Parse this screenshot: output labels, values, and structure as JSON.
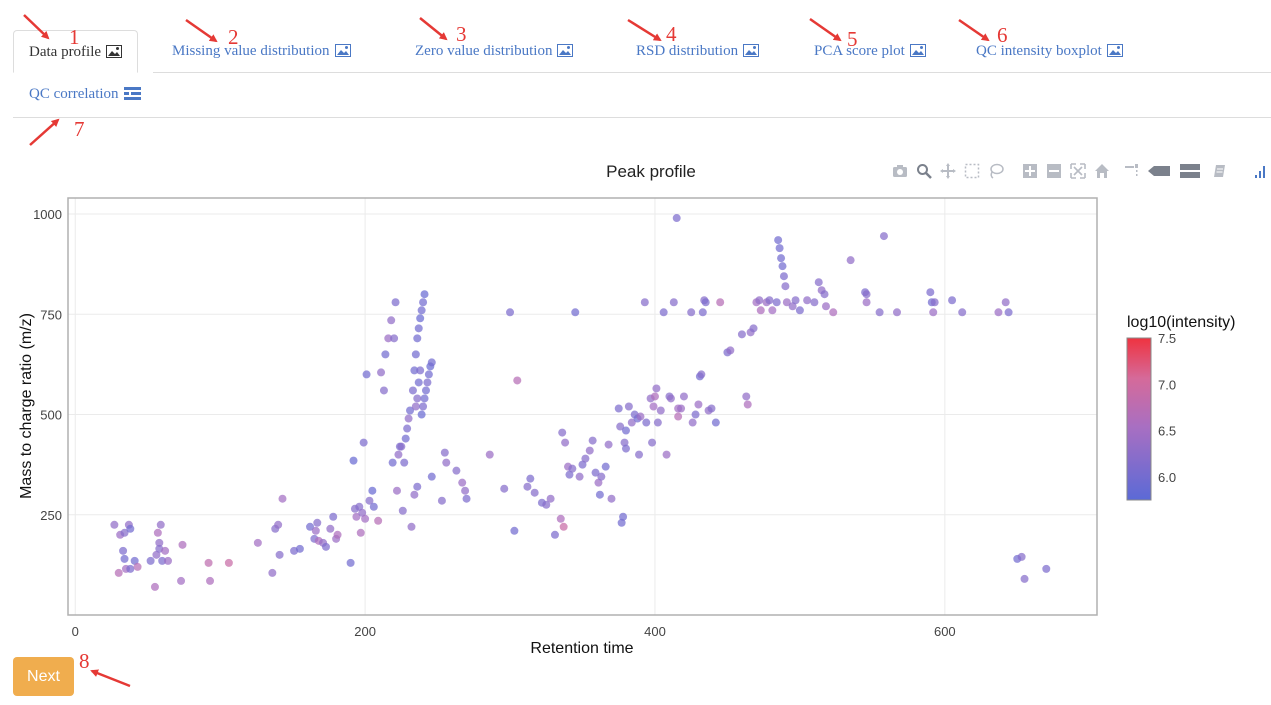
{
  "tabs": [
    {
      "label": "Data profile",
      "icon": "image-icon",
      "active": true
    },
    {
      "label": "Missing value distribution",
      "icon": "image-icon"
    },
    {
      "label": "Zero value distribution",
      "icon": "image-icon"
    },
    {
      "label": "RSD distribution",
      "icon": "image-icon"
    },
    {
      "label": "PCA score plot",
      "icon": "image-icon"
    },
    {
      "label": "QC intensity boxplot",
      "icon": "image-icon"
    },
    {
      "label": "QC correlation",
      "icon": "heatmap-icon"
    }
  ],
  "annotations": [
    "1",
    "2",
    "3",
    "4",
    "5",
    "6",
    "7",
    "8"
  ],
  "next_label": "Next",
  "modebar": [
    "camera-icon",
    "zoom-icon",
    "pan-icon",
    "box-select-icon",
    "lasso-icon",
    "zoom-in-icon",
    "zoom-out-icon",
    "autoscale-icon",
    "reset-axes-icon",
    "spike-lines-icon",
    "hover-closest-icon",
    "hover-compare-icon",
    "edit-chart-icon",
    "plotly-logo-icon"
  ],
  "colors": {
    "accent": "#4a78c5",
    "next": "#f0ad4e",
    "annotation": "#e53935",
    "low": "#5b6ad6",
    "high": "#ef3340"
  },
  "chart_data": {
    "type": "scatter",
    "title": "Peak profile",
    "xlabel": "Retention time",
    "ylabel": "Mass to charge ratio (m/z)",
    "xlim": [
      -5,
      705
    ],
    "ylim": [
      0,
      1040
    ],
    "xticks": [
      "0",
      "200",
      "400",
      "600"
    ],
    "xtick_values": [
      0,
      200,
      400,
      600
    ],
    "yticks": [
      "250",
      "500",
      "750",
      "1000"
    ],
    "ytick_values": [
      250,
      500,
      750,
      1000
    ],
    "grid": true,
    "colorbar": {
      "title": "log10(intensity)",
      "range": [
        5.75,
        7.5
      ],
      "ticks": [
        "6.0",
        "6.5",
        "7.0",
        "7.5"
      ],
      "tick_values": [
        6.0,
        6.5,
        7.0,
        7.5
      ]
    },
    "points": [
      [
        27,
        225,
        6.3
      ],
      [
        30,
        105,
        6.7
      ],
      [
        31,
        200,
        6.4
      ],
      [
        33,
        160,
        6.1
      ],
      [
        34,
        140,
        6.0
      ],
      [
        34,
        205,
        6.2
      ],
      [
        35,
        115,
        6.5
      ],
      [
        37,
        225,
        6.3
      ],
      [
        38,
        215,
        6.0
      ],
      [
        38,
        115,
        6.1
      ],
      [
        41,
        135,
        6.0
      ],
      [
        43,
        120,
        6.7
      ],
      [
        52,
        135,
        6.1
      ],
      [
        55,
        70,
        6.6
      ],
      [
        56,
        150,
        6.3
      ],
      [
        57,
        205,
        6.6
      ],
      [
        58,
        180,
        6.3
      ],
      [
        58,
        165,
        6.2
      ],
      [
        59,
        225,
        6.3
      ],
      [
        60,
        135,
        6.1
      ],
      [
        62,
        160,
        6.5
      ],
      [
        64,
        135,
        6.4
      ],
      [
        73,
        85,
        6.5
      ],
      [
        74,
        175,
        6.6
      ],
      [
        92,
        130,
        6.8
      ],
      [
        93,
        85,
        6.6
      ],
      [
        106,
        130,
        6.9
      ],
      [
        126,
        180,
        6.5
      ],
      [
        136,
        105,
        6.3
      ],
      [
        138,
        215,
        6.2
      ],
      [
        140,
        225,
        6.3
      ],
      [
        141,
        150,
        6.2
      ],
      [
        143,
        290,
        6.5
      ],
      [
        151,
        160,
        6.1
      ],
      [
        155,
        165,
        6.0
      ],
      [
        162,
        220,
        6.0
      ],
      [
        165,
        190,
        6.1
      ],
      [
        166,
        210,
        6.4
      ],
      [
        167,
        230,
        6.2
      ],
      [
        168,
        185,
        6.6
      ],
      [
        171,
        180,
        6.3
      ],
      [
        173,
        170,
        6.1
      ],
      [
        176,
        215,
        6.3
      ],
      [
        178,
        245,
        6.1
      ],
      [
        180,
        190,
        6.4
      ],
      [
        181,
        200,
        6.6
      ],
      [
        190,
        130,
        6.0
      ],
      [
        192,
        385,
        5.9
      ],
      [
        193,
        265,
        6.2
      ],
      [
        194,
        245,
        6.5
      ],
      [
        196,
        270,
        6.2
      ],
      [
        197,
        205,
        6.6
      ],
      [
        198,
        255,
        6.3
      ],
      [
        199,
        430,
        6.1
      ],
      [
        200,
        240,
        6.5
      ],
      [
        201,
        600,
        6.0
      ],
      [
        203,
        285,
        6.2
      ],
      [
        205,
        310,
        5.9
      ],
      [
        206,
        270,
        6.0
      ],
      [
        209,
        235,
        6.7
      ],
      [
        211,
        605,
        6.3
      ],
      [
        213,
        560,
        6.2
      ],
      [
        214,
        650,
        6.0
      ],
      [
        216,
        690,
        6.4
      ],
      [
        218,
        735,
        6.3
      ],
      [
        219,
        380,
        6.0
      ],
      [
        220,
        690,
        6.2
      ],
      [
        221,
        780,
        6.1
      ],
      [
        222,
        310,
        6.4
      ],
      [
        223,
        400,
        6.3
      ],
      [
        224,
        420,
        6.1
      ],
      [
        225,
        420,
        6.2
      ],
      [
        226,
        260,
        6.2
      ],
      [
        227,
        380,
        6.1
      ],
      [
        228,
        440,
        6.0
      ],
      [
        229,
        465,
        6.1
      ],
      [
        230,
        490,
        6.3
      ],
      [
        231,
        510,
        6.0
      ],
      [
        232,
        220,
        6.3
      ],
      [
        233,
        560,
        6.1
      ],
      [
        234,
        610,
        6.0
      ],
      [
        235,
        650,
        6.0
      ],
      [
        236,
        690,
        6.0
      ],
      [
        237,
        715,
        6.0
      ],
      [
        238,
        740,
        5.9
      ],
      [
        239,
        760,
        6.0
      ],
      [
        240,
        780,
        6.0
      ],
      [
        241,
        800,
        5.9
      ],
      [
        235,
        520,
        6.3
      ],
      [
        239,
        500,
        5.9
      ],
      [
        240,
        520,
        6.1
      ],
      [
        241,
        540,
        6.0
      ],
      [
        242,
        560,
        6.0
      ],
      [
        243,
        580,
        6.1
      ],
      [
        244,
        600,
        6.0
      ],
      [
        245,
        620,
        5.9
      ],
      [
        246,
        630,
        6.0
      ],
      [
        236,
        540,
        6.2
      ],
      [
        237,
        580,
        6.0
      ],
      [
        238,
        610,
        6.1
      ],
      [
        234,
        300,
        6.3
      ],
      [
        236,
        320,
        6.1
      ],
      [
        246,
        345,
        6.0
      ],
      [
        253,
        285,
        6.2
      ],
      [
        255,
        405,
        6.2
      ],
      [
        256,
        380,
        6.3
      ],
      [
        263,
        360,
        6.2
      ],
      [
        267,
        330,
        6.4
      ],
      [
        269,
        310,
        6.3
      ],
      [
        270,
        290,
        6.1
      ],
      [
        286,
        400,
        6.4
      ],
      [
        296,
        315,
        6.2
      ],
      [
        300,
        755,
        6.1
      ],
      [
        303,
        210,
        6.0
      ],
      [
        305,
        585,
        6.7
      ],
      [
        312,
        320,
        6.2
      ],
      [
        314,
        340,
        6.1
      ],
      [
        317,
        305,
        6.2
      ],
      [
        322,
        280,
        6.1
      ],
      [
        325,
        275,
        6.2
      ],
      [
        328,
        290,
        6.3
      ],
      [
        331,
        200,
        6.1
      ],
      [
        335,
        240,
        6.6
      ],
      [
        336,
        455,
        6.2
      ],
      [
        337,
        220,
        6.9
      ],
      [
        338,
        430,
        6.3
      ],
      [
        340,
        370,
        6.4
      ],
      [
        341,
        350,
        6.1
      ],
      [
        343,
        365,
        6.2
      ],
      [
        345,
        755,
        6.0
      ],
      [
        348,
        345,
        6.3
      ],
      [
        350,
        375,
        6.1
      ],
      [
        352,
        390,
        6.2
      ],
      [
        355,
        410,
        6.3
      ],
      [
        357,
        435,
        6.2
      ],
      [
        359,
        355,
        6.1
      ],
      [
        361,
        330,
        6.4
      ],
      [
        362,
        300,
        6.0
      ],
      [
        363,
        345,
        6.2
      ],
      [
        366,
        370,
        6.0
      ],
      [
        368,
        425,
        6.3
      ],
      [
        370,
        290,
        6.3
      ],
      [
        375,
        515,
        6.1
      ],
      [
        376,
        470,
        6.2
      ],
      [
        377,
        230,
        6.0
      ],
      [
        378,
        245,
        6.0
      ],
      [
        379,
        430,
        6.2
      ],
      [
        380,
        415,
        6.1
      ],
      [
        380,
        460,
        6.0
      ],
      [
        382,
        520,
        6.2
      ],
      [
        384,
        480,
        6.3
      ],
      [
        386,
        500,
        6.1
      ],
      [
        388,
        490,
        6.0
      ],
      [
        389,
        400,
        6.2
      ],
      [
        390,
        495,
        6.4
      ],
      [
        393,
        780,
        6.2
      ],
      [
        394,
        480,
        6.1
      ],
      [
        397,
        540,
        6.3
      ],
      [
        398,
        430,
        6.2
      ],
      [
        399,
        520,
        6.5
      ],
      [
        400,
        545,
        6.6
      ],
      [
        401,
        565,
        6.3
      ],
      [
        402,
        480,
        6.2
      ],
      [
        404,
        510,
        6.3
      ],
      [
        406,
        755,
        6.1
      ],
      [
        408,
        400,
        6.4
      ],
      [
        410,
        545,
        6.2
      ],
      [
        411,
        540,
        6.3
      ],
      [
        413,
        780,
        6.2
      ],
      [
        415,
        990,
        6.1
      ],
      [
        416,
        495,
        6.7
      ],
      [
        416,
        515,
        6.5
      ],
      [
        418,
        515,
        6.4
      ],
      [
        420,
        545,
        6.3
      ],
      [
        425,
        755,
        6.2
      ],
      [
        426,
        480,
        6.3
      ],
      [
        428,
        500,
        6.1
      ],
      [
        430,
        525,
        6.4
      ],
      [
        431,
        595,
        6.0
      ],
      [
        432,
        600,
        6.2
      ],
      [
        433,
        755,
        6.1
      ],
      [
        434,
        785,
        6.2
      ],
      [
        435,
        780,
        6.1
      ],
      [
        437,
        510,
        6.3
      ],
      [
        439,
        515,
        6.2
      ],
      [
        442,
        480,
        6.0
      ],
      [
        445,
        780,
        6.7
      ],
      [
        450,
        655,
        6.1
      ],
      [
        452,
        660,
        6.3
      ],
      [
        460,
        700,
        6.2
      ],
      [
        463,
        545,
        6.3
      ],
      [
        464,
        525,
        6.6
      ],
      [
        466,
        705,
        6.3
      ],
      [
        468,
        715,
        6.2
      ],
      [
        470,
        780,
        6.5
      ],
      [
        472,
        785,
        6.3
      ],
      [
        473,
        760,
        6.6
      ],
      [
        477,
        780,
        6.4
      ],
      [
        479,
        785,
        6.2
      ],
      [
        481,
        760,
        6.5
      ],
      [
        484,
        780,
        6.1
      ],
      [
        485,
        935,
        6.0
      ],
      [
        486,
        915,
        6.0
      ],
      [
        487,
        890,
        6.0
      ],
      [
        488,
        870,
        6.0
      ],
      [
        489,
        845,
        6.1
      ],
      [
        490,
        820,
        6.2
      ],
      [
        491,
        780,
        6.4
      ],
      [
        495,
        770,
        6.3
      ],
      [
        497,
        785,
        6.2
      ],
      [
        500,
        760,
        6.1
      ],
      [
        505,
        785,
        6.3
      ],
      [
        510,
        780,
        6.2
      ],
      [
        513,
        830,
        6.2
      ],
      [
        515,
        810,
        6.3
      ],
      [
        517,
        800,
        6.2
      ],
      [
        518,
        770,
        6.4
      ],
      [
        523,
        755,
        6.6
      ],
      [
        535,
        885,
        6.3
      ],
      [
        545,
        805,
        6.1
      ],
      [
        546,
        780,
        6.4
      ],
      [
        546,
        800,
        6.2
      ],
      [
        555,
        755,
        6.2
      ],
      [
        558,
        945,
        6.2
      ],
      [
        567,
        755,
        6.3
      ],
      [
        590,
        805,
        6.1
      ],
      [
        591,
        780,
        6.0
      ],
      [
        592,
        755,
        6.4
      ],
      [
        593,
        780,
        6.2
      ],
      [
        605,
        785,
        6.1
      ],
      [
        612,
        755,
        6.2
      ],
      [
        637,
        755,
        6.4
      ],
      [
        642,
        780,
        6.3
      ],
      [
        644,
        755,
        6.1
      ],
      [
        650,
        140,
        6.0
      ],
      [
        653,
        145,
        6.2
      ],
      [
        655,
        90,
        6.2
      ],
      [
        670,
        115,
        6.1
      ]
    ]
  }
}
